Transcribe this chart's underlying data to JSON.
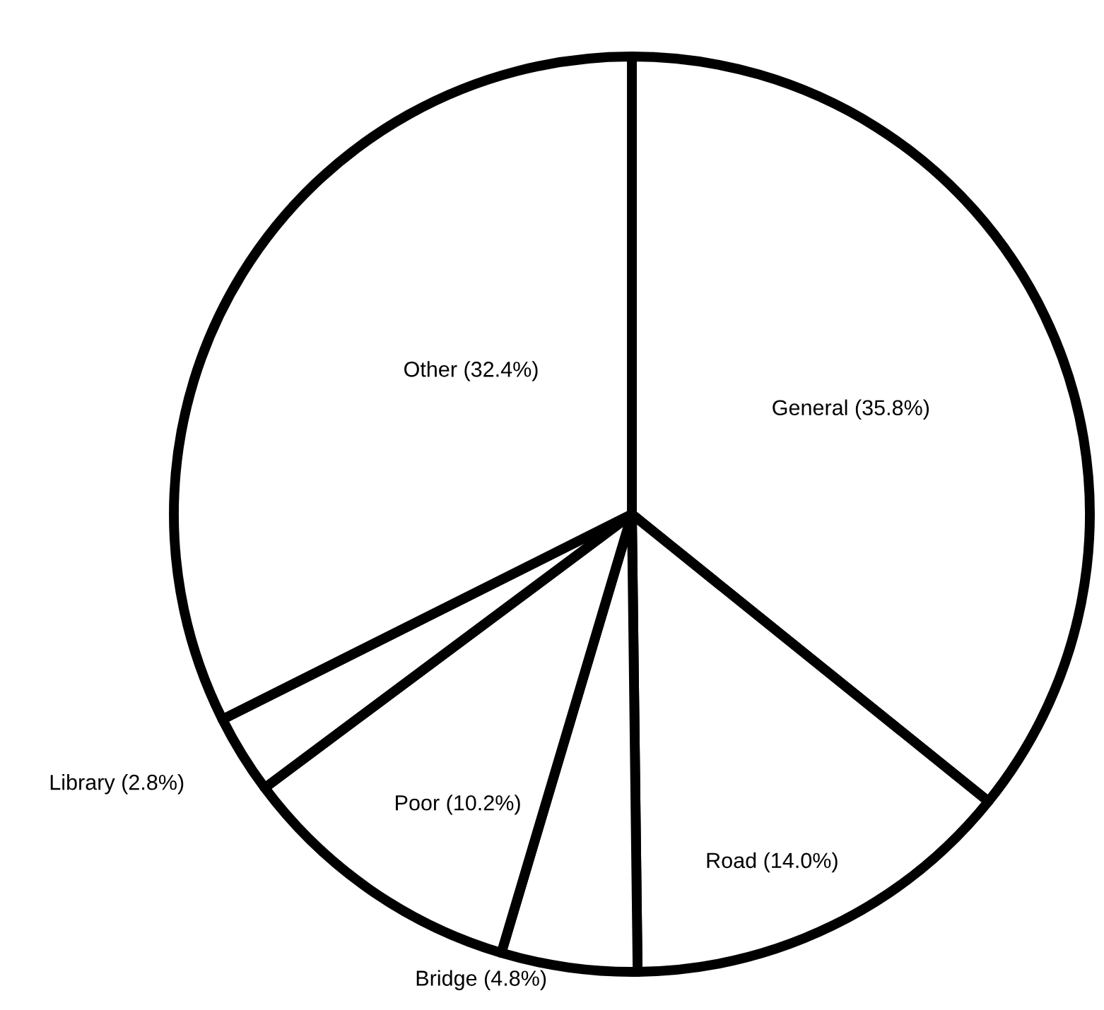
{
  "chart_data": {
    "type": "pie",
    "categories": [
      "General (35.8%)",
      "Road (14.0%)",
      "Bridge (4.8%)",
      "Poor (10.2%)",
      "Library (2.8%)",
      "Other (32.4%)"
    ],
    "values": [
      35.8,
      14.0,
      4.8,
      10.2,
      2.8,
      32.4
    ],
    "colors": [
      "#ffffff",
      "#ffffff",
      "#ffffff",
      "#ffffff",
      "#ffffff",
      "#ffffff"
    ],
    "legend": false
  }
}
